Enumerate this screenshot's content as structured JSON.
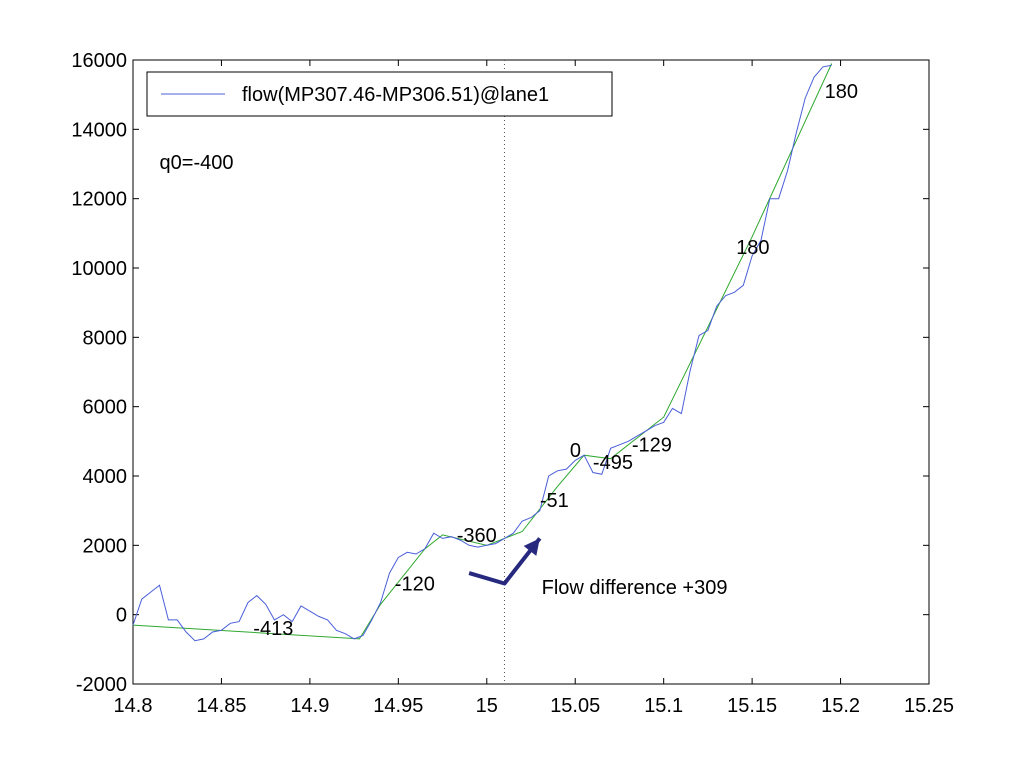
{
  "chart_data": {
    "type": "line",
    "xlim": [
      14.8,
      15.25
    ],
    "ylim": [
      -2000,
      16000
    ],
    "x_ticks": [
      14.8,
      14.85,
      14.9,
      14.95,
      15,
      15.05,
      15.1,
      15.15,
      15.2,
      15.25
    ],
    "x_tick_labels": [
      "14.8",
      "14.85",
      "14.9",
      "14.95",
      "15",
      "15.05",
      "15.1",
      "15.15",
      "15.2",
      "15.25"
    ],
    "y_ticks": [
      -2000,
      0,
      2000,
      4000,
      6000,
      8000,
      10000,
      12000,
      14000,
      16000
    ],
    "y_tick_labels": [
      "-2000",
      "0",
      "2000",
      "4000",
      "6000",
      "8000",
      "10000",
      "12000",
      "14000",
      "16000"
    ],
    "legend": {
      "placement": "top-left",
      "entries": [
        "flow(MP307.46-MP306.51)@lane1"
      ]
    },
    "series": [
      {
        "name": "flow(MP307.46-MP306.51)@lane1",
        "color": "#4a5fd9",
        "x": [
          14.8,
          14.805,
          14.81,
          14.815,
          14.82,
          14.825,
          14.83,
          14.835,
          14.84,
          14.845,
          14.85,
          14.855,
          14.86,
          14.865,
          14.87,
          14.875,
          14.88,
          14.885,
          14.89,
          14.895,
          14.9,
          14.905,
          14.91,
          14.915,
          14.92,
          14.925,
          14.93,
          14.935,
          14.94,
          14.945,
          14.95,
          14.955,
          14.96,
          14.965,
          14.97,
          14.975,
          14.98,
          14.985,
          14.99,
          14.995,
          15.0,
          15.005,
          15.01,
          15.015,
          15.02,
          15.025,
          15.03,
          15.035,
          15.04,
          15.045,
          15.05,
          15.055,
          15.06,
          15.065,
          15.07,
          15.075,
          15.08,
          15.085,
          15.09,
          15.095,
          15.1,
          15.105,
          15.11,
          15.115,
          15.12,
          15.125,
          15.13,
          15.135,
          15.14,
          15.145,
          15.15,
          15.155,
          15.16,
          15.165,
          15.17,
          15.175,
          15.18,
          15.185,
          15.19,
          15.195
        ],
        "y": [
          -300,
          450,
          650,
          850,
          -150,
          -150,
          -500,
          -750,
          -700,
          -500,
          -450,
          -250,
          -200,
          350,
          550,
          300,
          -150,
          0,
          -200,
          250,
          100,
          -50,
          -150,
          -450,
          -550,
          -700,
          -600,
          -150,
          350,
          1200,
          1650,
          1800,
          1750,
          1900,
          2350,
          2200,
          2250,
          2150,
          2000,
          1950,
          2000,
          2050,
          2200,
          2350,
          2700,
          2800,
          3000,
          4000,
          4150,
          4200,
          4450,
          4600,
          4100,
          4050,
          4800,
          4900,
          5000,
          5150,
          5300,
          5450,
          5550,
          5950,
          5800,
          7050,
          8050,
          8200,
          8900,
          9200,
          9300,
          9500,
          10350,
          10800,
          12000,
          12000,
          12800,
          13900,
          14900,
          15500,
          15800,
          15850
        ]
      },
      {
        "color": "#2ea82e",
        "x": [
          14.8,
          14.928,
          14.94,
          14.965,
          14.975,
          15.0,
          15.02,
          15.04,
          15.055,
          15.07,
          15.1,
          15.15,
          15.195
        ],
        "y": [
          -300,
          -700,
          300,
          1900,
          2300,
          2000,
          2400,
          3700,
          4600,
          4500,
          5700,
          10900,
          15900
        ]
      }
    ],
    "annotations": [
      {
        "text": "q0=-400",
        "x": 14.815,
        "y": 12850
      },
      {
        "text": "-413",
        "x": 14.868,
        "y": -580
      },
      {
        "text": "-120",
        "x": 14.948,
        "y": 700
      },
      {
        "text": "-360",
        "x": 14.983,
        "y": 2100
      },
      {
        "text": "-51",
        "x": 15.03,
        "y": 3100
      },
      {
        "text": "0",
        "x": 15.047,
        "y": 4550
      },
      {
        "text": "-495",
        "x": 15.06,
        "y": 4200
      },
      {
        "text": "-129",
        "x": 15.082,
        "y": 4700
      },
      {
        "text": "180",
        "x": 15.141,
        "y": 10400
      },
      {
        "text": "180",
        "x": 15.191,
        "y": 14900
      },
      {
        "text": "Flow difference +309",
        "x": 15.031,
        "y": 600
      }
    ],
    "reference_line": {
      "x": 15.01,
      "style": "dotted"
    },
    "arrow": {
      "color": "#27297e",
      "points": [
        [
          14.99,
          1200
        ],
        [
          15.01,
          900
        ],
        [
          15.03,
          2200
        ]
      ]
    },
    "grid": false
  }
}
